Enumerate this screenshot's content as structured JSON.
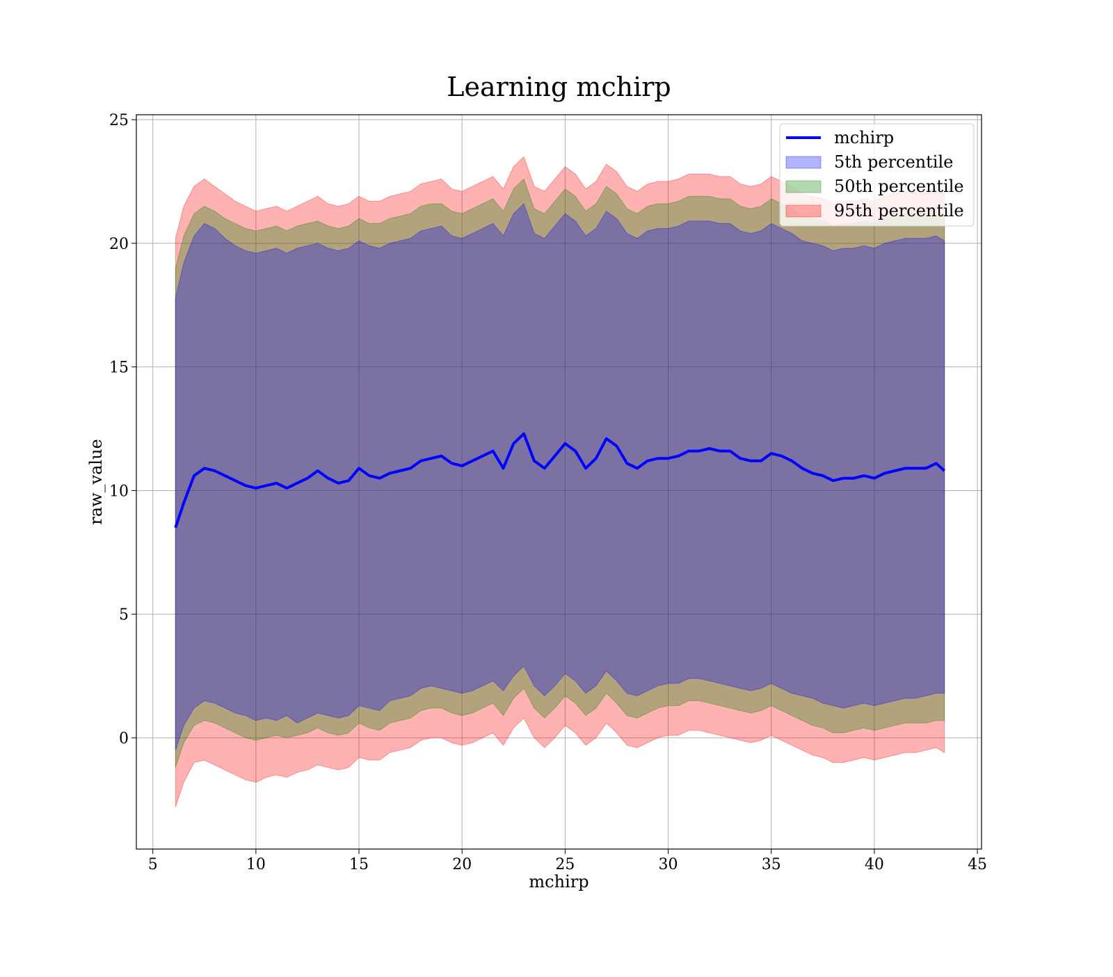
{
  "chart_data": {
    "type": "line",
    "title": "Learning mchirp",
    "xlabel": "mchirp",
    "ylabel": "raw_value",
    "xlim": [
      4.2,
      45.2
    ],
    "ylim": [
      -4.5,
      25.2
    ],
    "xticks": [
      5,
      10,
      15,
      20,
      25,
      30,
      35,
      40,
      45
    ],
    "yticks": [
      0,
      5,
      10,
      15,
      20,
      25
    ],
    "grid": true,
    "legend_position": "top-right",
    "colors": {
      "line": "#0000ff",
      "p5": "#0000ff",
      "p50": "#008000",
      "p95": "#ff0000"
    },
    "legend": [
      {
        "key": "line",
        "label": "mchirp",
        "kind": "line"
      },
      {
        "key": "p5",
        "label": "5th percentile",
        "kind": "patch"
      },
      {
        "key": "p50",
        "label": "50th percentile",
        "kind": "patch"
      },
      {
        "key": "p95",
        "label": "95th percentile",
        "kind": "patch"
      }
    ],
    "x": [
      6.1,
      6.5,
      7,
      7.5,
      8,
      8.5,
      9,
      9.5,
      10,
      10.5,
      11,
      11.5,
      12,
      12.5,
      13,
      13.5,
      14,
      14.5,
      15,
      15.5,
      16,
      16.5,
      17,
      17.5,
      18,
      18.5,
      19,
      19.5,
      20,
      20.5,
      21,
      21.5,
      22,
      22.5,
      23,
      23.5,
      24,
      24.5,
      25,
      25.5,
      26,
      26.5,
      27,
      27.5,
      28,
      28.5,
      29,
      29.5,
      30,
      30.5,
      31,
      31.5,
      32,
      32.5,
      33,
      33.5,
      34,
      34.5,
      35,
      35.5,
      36,
      36.5,
      37,
      37.5,
      38,
      38.5,
      39,
      39.5,
      40,
      40.5,
      41,
      41.5,
      42,
      42.5,
      43,
      43.4
    ],
    "series": [
      {
        "name": "mchirp",
        "values": [
          8.5,
          9.5,
          10.6,
          10.9,
          10.8,
          10.6,
          10.4,
          10.2,
          10.1,
          10.2,
          10.3,
          10.1,
          10.3,
          10.5,
          10.8,
          10.5,
          10.3,
          10.4,
          10.9,
          10.6,
          10.5,
          10.7,
          10.8,
          10.9,
          11.2,
          11.3,
          11.4,
          11.1,
          11,
          11.2,
          11.4,
          11.6,
          10.9,
          11.9,
          12.3,
          11.2,
          10.9,
          11.4,
          11.9,
          11.6,
          10.9,
          11.3,
          12.1,
          11.8,
          11.1,
          10.9,
          11.2,
          11.3,
          11.3,
          11.4,
          11.6,
          11.6,
          11.7,
          11.6,
          11.6,
          11.3,
          11.2,
          11.2,
          11.5,
          11.4,
          11.2,
          10.9,
          10.7,
          10.6,
          10.4,
          10.5,
          10.5,
          10.6,
          10.5,
          10.7,
          10.8,
          10.9,
          10.9,
          10.9,
          11.1,
          10.8
        ]
      },
      {
        "name": "5th percentile",
        "lower": [
          -0.5,
          0.5,
          1.2,
          1.5,
          1.4,
          1.2,
          1.0,
          0.9,
          0.7,
          0.8,
          0.7,
          0.9,
          0.6,
          0.8,
          1.0,
          0.9,
          0.8,
          0.9,
          1.3,
          1.2,
          1.1,
          1.5,
          1.6,
          1.7,
          2.0,
          2.1,
          2.0,
          1.9,
          1.8,
          1.9,
          2.1,
          2.3,
          1.9,
          2.5,
          2.9,
          2.1,
          1.7,
          2.1,
          2.6,
          2.3,
          1.8,
          2.1,
          2.7,
          2.3,
          1.8,
          1.7,
          1.9,
          2.1,
          2.2,
          2.2,
          2.4,
          2.4,
          2.3,
          2.2,
          2.1,
          2.0,
          1.9,
          2.0,
          2.2,
          2.0,
          1.8,
          1.7,
          1.6,
          1.4,
          1.3,
          1.2,
          1.3,
          1.4,
          1.3,
          1.4,
          1.5,
          1.6,
          1.6,
          1.7,
          1.8,
          1.8
        ],
        "upper": [
          17.8,
          19.2,
          20.3,
          20.8,
          20.6,
          20.2,
          19.9,
          19.7,
          19.6,
          19.7,
          19.8,
          19.6,
          19.8,
          19.9,
          20.0,
          19.8,
          19.7,
          19.8,
          20.1,
          19.9,
          19.8,
          20.0,
          20.1,
          20.2,
          20.5,
          20.6,
          20.7,
          20.3,
          20.2,
          20.4,
          20.6,
          20.8,
          20.3,
          21.2,
          21.6,
          20.4,
          20.2,
          20.7,
          21.2,
          20.9,
          20.3,
          20.6,
          21.3,
          21.0,
          20.4,
          20.2,
          20.5,
          20.6,
          20.6,
          20.7,
          20.9,
          20.9,
          20.9,
          20.8,
          20.8,
          20.5,
          20.4,
          20.5,
          20.8,
          20.6,
          20.4,
          20.1,
          20.0,
          19.9,
          19.7,
          19.8,
          19.8,
          19.9,
          19.8,
          20.0,
          20.1,
          20.2,
          20.2,
          20.2,
          20.3,
          20.1
        ]
      },
      {
        "name": "50th percentile",
        "lower": [
          -1.2,
          -0.2,
          0.5,
          0.7,
          0.6,
          0.4,
          0.2,
          0.0,
          -0.1,
          0.0,
          0.1,
          0.0,
          0.1,
          0.2,
          0.4,
          0.2,
          0.1,
          0.2,
          0.6,
          0.4,
          0.3,
          0.6,
          0.7,
          0.8,
          1.1,
          1.2,
          1.2,
          1.0,
          0.9,
          1.0,
          1.2,
          1.4,
          0.9,
          1.6,
          2.0,
          1.2,
          0.8,
          1.2,
          1.7,
          1.4,
          0.9,
          1.2,
          1.8,
          1.4,
          0.9,
          0.8,
          1.0,
          1.2,
          1.3,
          1.3,
          1.5,
          1.5,
          1.4,
          1.3,
          1.2,
          1.1,
          1.0,
          1.1,
          1.3,
          1.1,
          0.9,
          0.7,
          0.5,
          0.4,
          0.2,
          0.2,
          0.3,
          0.4,
          0.3,
          0.4,
          0.5,
          0.6,
          0.6,
          0.6,
          0.7,
          0.7
        ],
        "upper": [
          19.0,
          20.3,
          21.2,
          21.5,
          21.3,
          21.0,
          20.8,
          20.6,
          20.5,
          20.6,
          20.7,
          20.5,
          20.7,
          20.8,
          20.9,
          20.7,
          20.6,
          20.7,
          21.0,
          20.8,
          20.8,
          21.0,
          21.1,
          21.2,
          21.5,
          21.6,
          21.6,
          21.3,
          21.2,
          21.4,
          21.6,
          21.8,
          21.3,
          22.2,
          22.6,
          21.4,
          21.2,
          21.7,
          22.2,
          21.9,
          21.3,
          21.6,
          22.3,
          22.0,
          21.4,
          21.2,
          21.5,
          21.6,
          21.6,
          21.7,
          21.9,
          21.9,
          21.9,
          21.8,
          21.8,
          21.5,
          21.4,
          21.5,
          21.8,
          21.6,
          21.4,
          21.1,
          21.0,
          20.9,
          20.7,
          20.8,
          20.8,
          20.9,
          20.8,
          21.0,
          21.1,
          21.2,
          21.2,
          21.2,
          21.3,
          21.1
        ]
      },
      {
        "name": "95th percentile",
        "lower": [
          -2.8,
          -1.8,
          -1.0,
          -0.9,
          -1.1,
          -1.3,
          -1.5,
          -1.7,
          -1.8,
          -1.6,
          -1.5,
          -1.6,
          -1.4,
          -1.3,
          -1.1,
          -1.2,
          -1.3,
          -1.2,
          -0.8,
          -0.9,
          -0.9,
          -0.6,
          -0.5,
          -0.4,
          -0.1,
          0.0,
          0.0,
          -0.2,
          -0.3,
          -0.2,
          0.0,
          0.2,
          -0.3,
          0.4,
          0.8,
          0.0,
          -0.4,
          0.0,
          0.5,
          0.2,
          -0.3,
          0.0,
          0.6,
          0.2,
          -0.3,
          -0.4,
          -0.2,
          0.0,
          0.1,
          0.1,
          0.3,
          0.3,
          0.2,
          0.1,
          0.0,
          -0.1,
          -0.2,
          -0.1,
          0.1,
          -0.1,
          -0.3,
          -0.5,
          -0.7,
          -0.8,
          -1.0,
          -1.0,
          -0.9,
          -0.8,
          -0.9,
          -0.8,
          -0.7,
          -0.6,
          -0.6,
          -0.5,
          -0.4,
          -0.6
        ],
        "upper": [
          20.2,
          21.5,
          22.3,
          22.6,
          22.3,
          22.0,
          21.7,
          21.5,
          21.3,
          21.4,
          21.5,
          21.3,
          21.5,
          21.7,
          21.9,
          21.6,
          21.5,
          21.6,
          21.9,
          21.7,
          21.7,
          21.9,
          22.0,
          22.1,
          22.4,
          22.5,
          22.6,
          22.2,
          22.1,
          22.3,
          22.5,
          22.7,
          22.2,
          23.1,
          23.5,
          22.3,
          22.1,
          22.6,
          23.1,
          22.8,
          22.2,
          22.5,
          23.2,
          22.9,
          22.3,
          22.1,
          22.4,
          22.5,
          22.5,
          22.6,
          22.8,
          22.8,
          22.8,
          22.7,
          22.7,
          22.4,
          22.3,
          22.4,
          22.7,
          22.5,
          22.3,
          22.0,
          21.9,
          21.8,
          21.6,
          21.7,
          21.7,
          21.8,
          21.7,
          21.9,
          22.0,
          22.1,
          22.1,
          22.1,
          22.2,
          22.0
        ]
      }
    ]
  }
}
